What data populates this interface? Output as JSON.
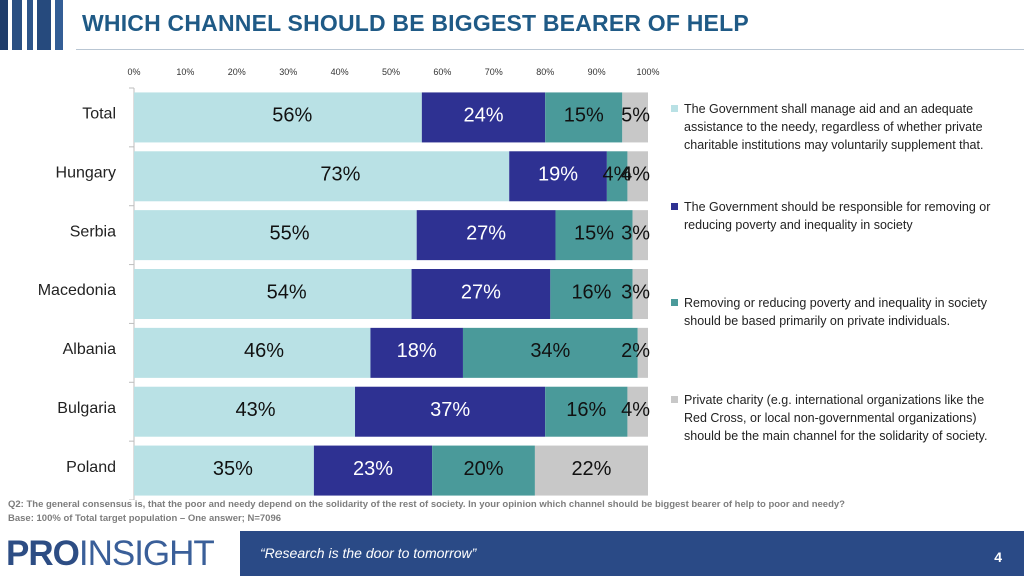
{
  "title": "WHICH CHANNEL SHOULD BE BIGGEST BEARER OF HELP",
  "chart_data": {
    "type": "bar",
    "orientation": "horizontal",
    "stacked": true,
    "categories": [
      "Total",
      "Hungary",
      "Serbia",
      "Macedonia",
      "Albania",
      "Bulgaria",
      "Poland"
    ],
    "axis_ticks": [
      "0%",
      "10%",
      "20%",
      "30%",
      "40%",
      "50%",
      "60%",
      "70%",
      "80%",
      "90%",
      "100%"
    ],
    "xlim": [
      0,
      100
    ],
    "series": [
      {
        "name": "The Government shall manage aid and an adequate assistance to the needy, regardless of whether private charitable institutions may voluntarily supplement that.",
        "color": "#b9e1e5",
        "text_color": "#111111",
        "values": [
          56,
          73,
          55,
          54,
          46,
          43,
          35
        ],
        "labels": [
          "56%",
          "73%",
          "55%",
          "54%",
          "46%",
          "43%",
          "35%"
        ]
      },
      {
        "name": "The Government should be responsible for removing or reducing poverty and inequality in society",
        "color": "#2e3192",
        "text_color": "#ffffff",
        "values": [
          24,
          19,
          27,
          27,
          18,
          37,
          23
        ],
        "labels": [
          "24%",
          "19%",
          "27%",
          "27%",
          "18%",
          "37%",
          "23%"
        ]
      },
      {
        "name": "Removing or reducing poverty and inequality in society should be based primarily on private individuals.",
        "color": "#4a9a9a",
        "text_color": "#111111",
        "values": [
          15,
          4,
          15,
          16,
          34,
          16,
          20
        ],
        "labels": [
          "15%",
          "4%",
          "15%",
          "16%",
          "34%",
          "16%",
          "20%"
        ]
      },
      {
        "name": "Private charity (e.g. international organizations like the Red Cross, or local non-governmental organizations) should be the main channel for the solidarity of society.",
        "color": "#c8c8c8",
        "text_color": "#111111",
        "values": [
          5,
          4,
          3,
          3,
          2,
          4,
          22
        ],
        "labels": [
          "5%",
          "4%",
          "3%",
          "3%",
          "2%",
          "4%",
          "22%"
        ]
      }
    ]
  },
  "legend": [
    {
      "text": "The Government shall manage aid and an adequate assistance to the needy, regardless of whether private charitable institutions may voluntarily supplement that.",
      "color": "#b9e1e5"
    },
    {
      "text": "The Government should be responsible for removing or reducing poverty and inequality in society",
      "color": "#2e3192"
    },
    {
      "text": "Removing or reducing poverty and inequality in society should be based primarily on private individuals.",
      "color": "#4a9a9a"
    },
    {
      "text": "Private charity (e.g. international organizations like the Red Cross, or local non-governmental organizations) should be the main channel for the solidarity of society.",
      "color": "#c8c8c8"
    }
  ],
  "footnote": {
    "question": "Q2: The general consensus is, that the poor and needy depend on the solidarity of the rest of society. In your opinion which channel should be biggest bearer of  help to poor and needy?",
    "base": "Base: 100% of Total target population – One answer; N=7096"
  },
  "footer": {
    "logo_part1": "PRO",
    "logo_part2": "INSIGHT",
    "tagline": "“Research is the door to tomorrow”",
    "page_number": "4"
  }
}
